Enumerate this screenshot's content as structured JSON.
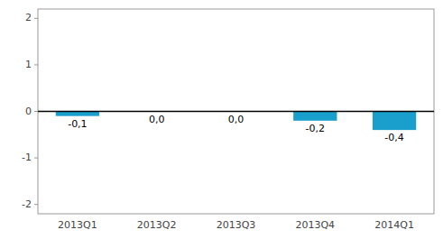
{
  "chart_data": {
    "type": "bar",
    "categories": [
      "2013Q1",
      "2013Q2",
      "2013Q3",
      "2013Q4",
      "2014Q1"
    ],
    "values": [
      -0.1,
      0.0,
      0.0,
      -0.2,
      -0.4
    ],
    "value_labels": [
      "-0,1",
      "0,0",
      "0,0",
      "-0,2",
      "-0,4"
    ],
    "data_labels": true,
    "color": "#1a9fcc",
    "ylim": [
      -2.2,
      2.2
    ],
    "yticks": [
      -2,
      -1,
      0,
      1,
      2
    ],
    "grid": false
  }
}
